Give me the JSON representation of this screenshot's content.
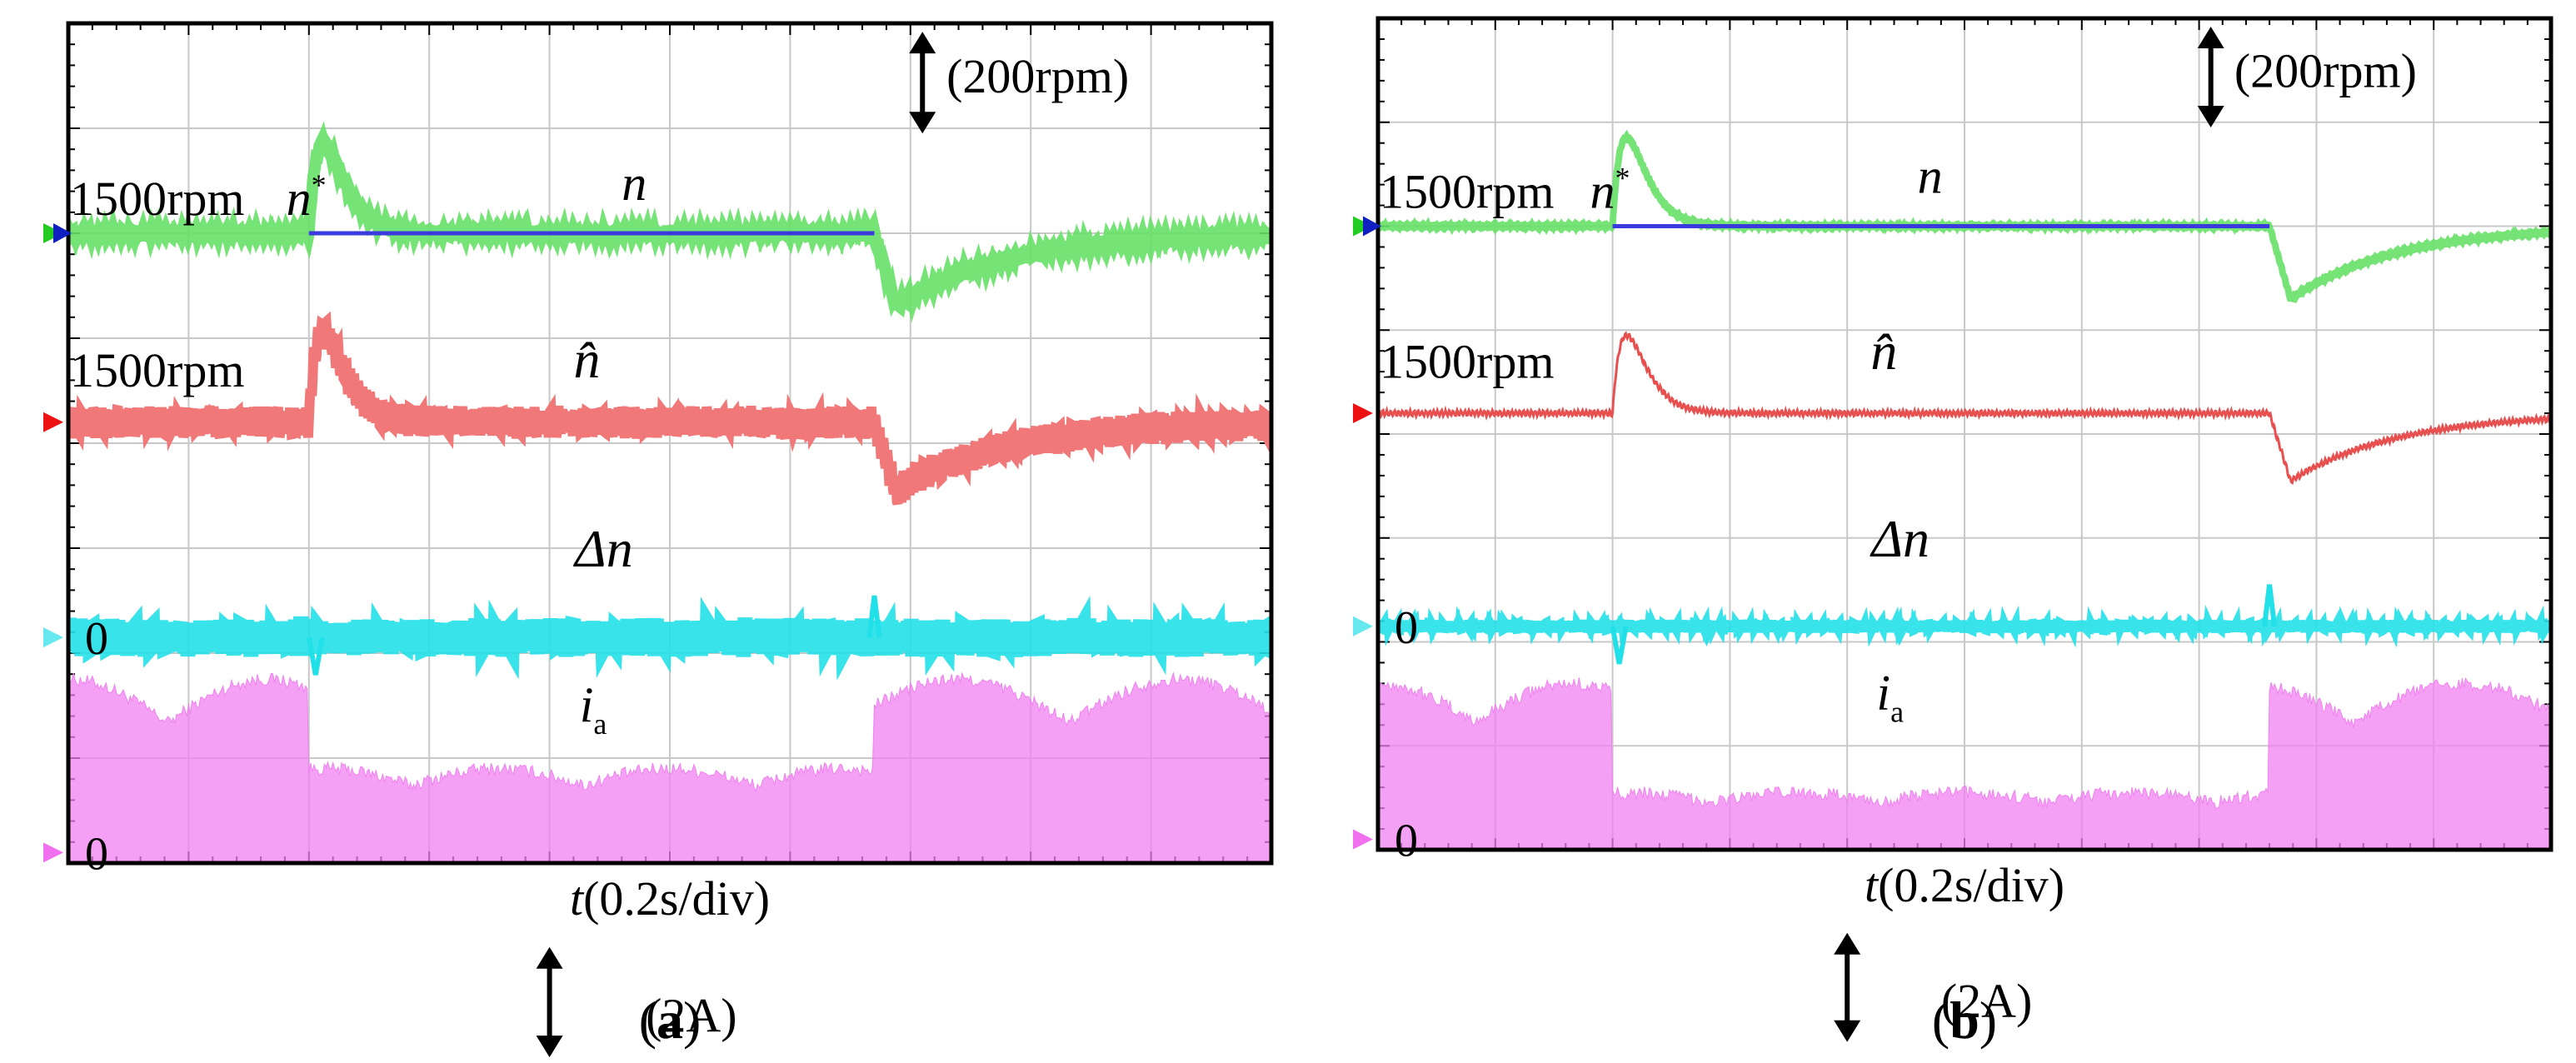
{
  "chart_data": [
    {
      "type": "line",
      "panel_label": "(a)",
      "xlabel": "t(0.2s/div)",
      "x_unit": "s",
      "x_per_div": 0.2,
      "x_divisions": 10,
      "y_divisions": 8,
      "scale_labels": {
        "speed": "(200rpm)",
        "current": "(2A)"
      },
      "series": [
        {
          "name": "n*",
          "label": "n",
          "superscript": "*",
          "color": "#3a3adf",
          "level_label": "1500rpm",
          "steady_rpm": 1500,
          "step_start_div": 2.0,
          "step_end_div": 6.7
        },
        {
          "name": "n",
          "label": "n",
          "color": "#66e066",
          "steady_rpm": 1500,
          "overshoot_rpm": 1670,
          "overshoot_div": 2.0,
          "undershoot_rpm": 1360,
          "undershoot_div": 6.8,
          "ripple_rpm": 12
        },
        {
          "name": "n_hat",
          "label": "n̂",
          "color": "#f07878",
          "level_label": "1500rpm",
          "steady_rpm": 1500,
          "overshoot_rpm": 1670,
          "undershoot_rpm": 1370,
          "ripple_rpm": 50
        },
        {
          "name": "delta_n",
          "label": "Δn",
          "color": "#22e0e8",
          "level_label": "0",
          "steady_rpm": 0,
          "ripple_rpm": 30
        },
        {
          "name": "i_a",
          "label": "i",
          "subscript": "a",
          "color": "#f080f0",
          "level_label": "0",
          "steady_A": 0,
          "amplitude_high_A": 3.3,
          "amplitude_load_A": 1.6
        }
      ]
    },
    {
      "type": "line",
      "panel_label": "(b)",
      "xlabel": "t(0.2s/div)",
      "x_unit": "s",
      "x_per_div": 0.2,
      "x_divisions": 10,
      "y_divisions": 8,
      "scale_labels": {
        "speed": "(200rpm)",
        "current": "(2A)"
      },
      "series": [
        {
          "name": "n*",
          "label": "n",
          "superscript": "*",
          "color": "#3a3adf",
          "level_label": "1500rpm",
          "steady_rpm": 1500,
          "step_start_div": 2.0,
          "step_end_div": 7.6
        },
        {
          "name": "n",
          "label": "n",
          "color": "#66e066",
          "steady_rpm": 1500,
          "overshoot_rpm": 1670,
          "overshoot_div": 2.1,
          "undershoot_rpm": 1360,
          "undershoot_div": 7.7,
          "ripple_rpm": 5
        },
        {
          "name": "n_hat",
          "label": "n̂",
          "color": "#e85050",
          "level_label": "1500rpm",
          "steady_rpm": 1500,
          "overshoot_rpm": 1650,
          "undershoot_rpm": 1370,
          "ripple_rpm": 10
        },
        {
          "name": "delta_n",
          "label": "Δn",
          "color": "#22e0e8",
          "level_label": "0",
          "steady_rpm": 0,
          "ripple_rpm": 10
        },
        {
          "name": "i_a",
          "label": "i",
          "subscript": "a",
          "color": "#f080f0",
          "level_label": "0",
          "steady_A": 0,
          "amplitude_high_A": 3.0,
          "amplitude_load_A": 0.9
        }
      ]
    }
  ]
}
